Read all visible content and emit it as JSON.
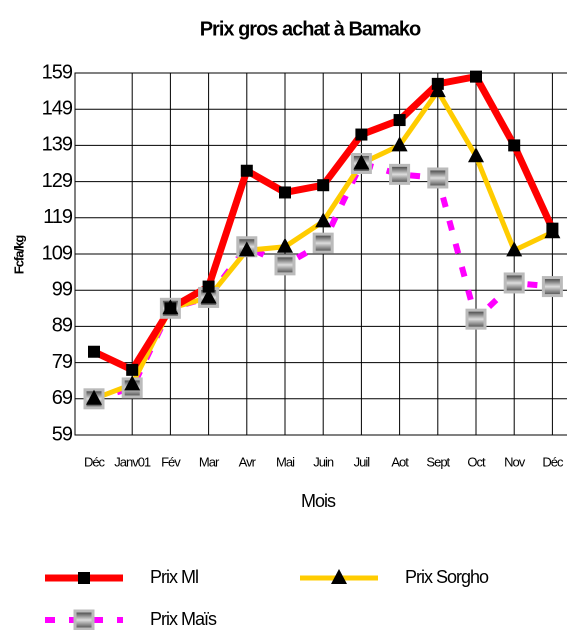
{
  "chart_data": {
    "type": "line",
    "title": "Prix  gros achat à Bamako",
    "x_label": "Mois",
    "y_label": "Fcfa/kg",
    "categories": [
      "Déc",
      "Janv01",
      "Fév",
      "Mar",
      "Avr",
      "Mai",
      "Juin",
      "Juil",
      "Aot",
      "Sept",
      "Oct",
      "Nov",
      "Déc"
    ],
    "series": [
      {
        "name": "Prix Ml",
        "color": "#ff0000",
        "values": [
          82,
          77,
          94,
          100,
          132,
          126,
          128,
          142,
          146,
          156,
          158,
          139,
          116
        ]
      },
      {
        "name": "Prix Sorgho",
        "color": "#ffcc00",
        "values": [
          69,
          73,
          94,
          97,
          110,
          111,
          118,
          134,
          139,
          154,
          136,
          110,
          115
        ]
      },
      {
        "name": "Prix Maïs",
        "color": "#ff00ff",
        "values": [
          69,
          72,
          94,
          97,
          111,
          106,
          112,
          134,
          131,
          130,
          91,
          101,
          100
        ]
      }
    ],
    "ylim": [
      59,
      159
    ],
    "yticks": [
      59,
      69,
      79,
      89,
      99,
      109,
      119,
      129,
      139,
      149,
      159
    ],
    "grid": true
  }
}
